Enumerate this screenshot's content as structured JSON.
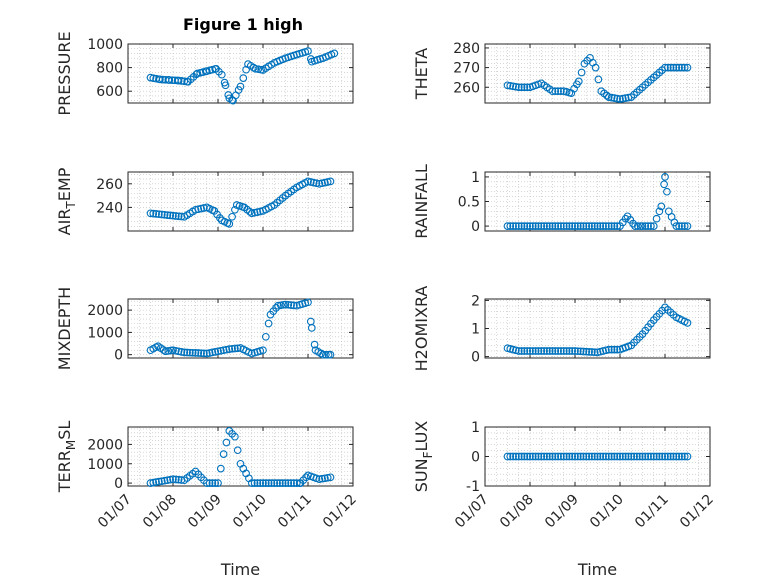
{
  "figure": {
    "title": "Figure 1 high"
  },
  "theme": {
    "marker_color": "#0072BD",
    "axis_color": "#262626",
    "grid_color": "#bdbdbd"
  },
  "chart_data": [
    {
      "type": "scatter",
      "ylabel_main": "PRESSURE",
      "ylabel_sub": "",
      "ylabel_tail": "",
      "ylim": [
        500,
        1000
      ],
      "yticks": [
        600,
        800,
        1000
      ],
      "ytick_labels": [
        "600",
        "800",
        "1000"
      ],
      "xlim": [
        "2020-01-07",
        "2020-01-12"
      ],
      "grid": true,
      "minor_grid": true,
      "x": [
        "2020-01-07 12:00",
        "2020-01-07 17:00",
        "2020-01-07 22:00",
        "2020-01-08 03:00",
        "2020-01-08 08:00",
        "2020-01-08 13:00",
        "2020-01-08 18:00",
        "2020-01-08 23:00",
        "2020-01-09 02:00",
        "2020-01-09 04:00",
        "2020-01-09 06:00",
        "2020-01-09 08:00",
        "2020-01-09 12:00",
        "2020-01-09 16:00",
        "2020-01-09 20:00",
        "2020-01-10 00:00",
        "2020-01-10 06:00",
        "2020-01-10 12:00",
        "2020-01-10 18:00",
        "2020-01-11 00:00",
        "2020-01-11 02:00",
        "2020-01-11 08:00",
        "2020-01-11 14:00"
      ],
      "values": [
        715,
        700,
        695,
        690,
        680,
        750,
        770,
        790,
        740,
        650,
        540,
        520,
        640,
        830,
        790,
        780,
        840,
        880,
        910,
        940,
        850,
        880,
        920
      ]
    },
    {
      "type": "scatter",
      "ylabel_main": "THETA",
      "ylabel_sub": "",
      "ylabel_tail": "",
      "ylim": [
        252,
        282
      ],
      "yticks": [
        260,
        270,
        280
      ],
      "ytick_labels": [
        "260",
        "270",
        "280"
      ],
      "xlim": [
        "2020-01-07",
        "2020-01-12"
      ],
      "grid": true,
      "minor_grid": true,
      "x": [
        "2020-01-07 12:00",
        "2020-01-07 18:00",
        "2020-01-08 00:00",
        "2020-01-08 06:00",
        "2020-01-08 12:00",
        "2020-01-08 18:00",
        "2020-01-08 22:00",
        "2020-01-09 02:00",
        "2020-01-09 05:00",
        "2020-01-09 08:00",
        "2020-01-09 11:00",
        "2020-01-09 14:00",
        "2020-01-09 18:00",
        "2020-01-10 00:00",
        "2020-01-10 06:00",
        "2020-01-10 12:00",
        "2020-01-10 18:00",
        "2020-01-11 00:00",
        "2020-01-11 06:00",
        "2020-01-11 12:00"
      ],
      "values": [
        261,
        260,
        260,
        262,
        258,
        258,
        257,
        263,
        272,
        275,
        270,
        258,
        255,
        254,
        255,
        260,
        265,
        270,
        270,
        270
      ]
    },
    {
      "type": "scatter",
      "ylabel_main": "AIR",
      "ylabel_sub": "T",
      "ylabel_tail": "EMP",
      "ylim": [
        220,
        270
      ],
      "yticks": [
        240,
        260
      ],
      "ytick_labels": [
        "240",
        "260"
      ],
      "xlim": [
        "2020-01-07",
        "2020-01-12"
      ],
      "grid": true,
      "minor_grid": true,
      "x": [
        "2020-01-07 12:00",
        "2020-01-07 18:00",
        "2020-01-08 00:00",
        "2020-01-08 06:00",
        "2020-01-08 12:00",
        "2020-01-08 18:00",
        "2020-01-08 22:00",
        "2020-01-09 02:00",
        "2020-01-09 06:00",
        "2020-01-09 10:00",
        "2020-01-09 14:00",
        "2020-01-09 18:00",
        "2020-01-10 00:00",
        "2020-01-10 06:00",
        "2020-01-10 12:00",
        "2020-01-10 18:00",
        "2020-01-11 00:00",
        "2020-01-11 06:00",
        "2020-01-11 12:00"
      ],
      "values": [
        235,
        234,
        233,
        232,
        238,
        240,
        237,
        229,
        226,
        242,
        240,
        235,
        237,
        242,
        250,
        257,
        262,
        260,
        262
      ]
    },
    {
      "type": "scatter",
      "ylabel_main": "RAINFALL",
      "ylabel_sub": "",
      "ylabel_tail": "",
      "ylim": [
        -0.1,
        1.1
      ],
      "yticks": [
        0,
        0.5,
        1
      ],
      "ytick_labels": [
        "0",
        "0.5",
        "1"
      ],
      "xlim": [
        "2020-01-07",
        "2020-01-12"
      ],
      "grid": true,
      "minor_grid": true,
      "x": [
        "2020-01-07 12:00",
        "2020-01-07 18:00",
        "2020-01-08 00:00",
        "2020-01-08 06:00",
        "2020-01-08 12:00",
        "2020-01-08 18:00",
        "2020-01-09 00:00",
        "2020-01-09 06:00",
        "2020-01-09 12:00",
        "2020-01-09 18:00",
        "2020-01-10 00:00",
        "2020-01-10 04:00",
        "2020-01-10 08:00",
        "2020-01-10 12:00",
        "2020-01-10 18:00",
        "2020-01-10 22:00",
        "2020-01-11 00:00",
        "2020-01-11 01:00",
        "2020-01-11 02:00",
        "2020-01-11 06:00",
        "2020-01-11 12:00"
      ],
      "values": [
        0,
        0,
        0,
        0,
        0,
        0,
        0,
        0,
        0,
        0,
        0,
        0.2,
        0,
        0,
        0,
        0.4,
        1.0,
        0.7,
        0.3,
        0,
        0
      ]
    },
    {
      "type": "scatter",
      "ylabel_main": "MIXDEPTH",
      "ylabel_sub": "",
      "ylabel_tail": "",
      "ylim": [
        -150,
        2500
      ],
      "yticks": [
        0,
        1000,
        2000
      ],
      "ytick_labels": [
        "0",
        "1000",
        "2000"
      ],
      "xlim": [
        "2020-01-07",
        "2020-01-12"
      ],
      "grid": true,
      "minor_grid": true,
      "x": [
        "2020-01-07 12:00",
        "2020-01-07 16:00",
        "2020-01-07 20:00",
        "2020-01-08 00:00",
        "2020-01-08 06:00",
        "2020-01-08 12:00",
        "2020-01-08 18:00",
        "2020-01-09 00:00",
        "2020-01-09 06:00",
        "2020-01-09 12:00",
        "2020-01-09 18:00",
        "2020-01-10 00:00",
        "2020-01-10 04:00",
        "2020-01-10 08:00",
        "2020-01-10 12:00",
        "2020-01-10 18:00",
        "2020-01-11 00:00",
        "2020-01-11 02:00",
        "2020-01-11 04:00",
        "2020-01-11 08:00",
        "2020-01-11 12:00"
      ],
      "values": [
        200,
        380,
        150,
        200,
        100,
        80,
        50,
        150,
        250,
        300,
        50,
        200,
        1800,
        2200,
        2250,
        2200,
        2350,
        1200,
        200,
        0,
        0
      ]
    },
    {
      "type": "scatter",
      "ylabel_main": "H2OMIXRA",
      "ylabel_sub": "",
      "ylabel_tail": "",
      "ylim": [
        -0.05,
        2.05
      ],
      "yticks": [
        0,
        1,
        2
      ],
      "ytick_labels": [
        "0",
        "1",
        "2"
      ],
      "xlim": [
        "2020-01-07",
        "2020-01-12"
      ],
      "grid": true,
      "minor_grid": true,
      "x": [
        "2020-01-07 12:00",
        "2020-01-07 18:00",
        "2020-01-08 00:00",
        "2020-01-08 12:00",
        "2020-01-09 00:00",
        "2020-01-09 12:00",
        "2020-01-09 18:00",
        "2020-01-10 00:00",
        "2020-01-10 06:00",
        "2020-01-10 12:00",
        "2020-01-10 18:00",
        "2020-01-11 00:00",
        "2020-01-11 06:00",
        "2020-01-11 12:00"
      ],
      "values": [
        0.3,
        0.2,
        0.2,
        0.2,
        0.2,
        0.15,
        0.25,
        0.25,
        0.4,
        0.8,
        1.3,
        1.75,
        1.4,
        1.2
      ]
    },
    {
      "type": "scatter",
      "ylabel_main": "TERR",
      "ylabel_sub": "M",
      "ylabel_tail": "SL",
      "ylim": [
        -150,
        2900
      ],
      "yticks": [
        0,
        1000,
        2000
      ],
      "ytick_labels": [
        "0",
        "1000",
        "2000"
      ],
      "xlim": [
        "2020-01-07",
        "2020-01-12"
      ],
      "grid": true,
      "minor_grid": true,
      "x": [
        "2020-01-07 12:00",
        "2020-01-07 18:00",
        "2020-01-08 00:00",
        "2020-01-08 06:00",
        "2020-01-08 12:00",
        "2020-01-08 18:00",
        "2020-01-09 00:00",
        "2020-01-09 03:00",
        "2020-01-09 06:00",
        "2020-01-09 09:00",
        "2020-01-09 12:00",
        "2020-01-09 18:00",
        "2020-01-10 00:00",
        "2020-01-10 12:00",
        "2020-01-10 20:00",
        "2020-01-11 00:00",
        "2020-01-11 06:00",
        "2020-01-11 12:00"
      ],
      "values": [
        0,
        100,
        200,
        150,
        600,
        0,
        0,
        1500,
        2700,
        2400,
        1000,
        0,
        0,
        0,
        0,
        400,
        200,
        300
      ]
    },
    {
      "type": "scatter",
      "ylabel_main": "SUN",
      "ylabel_sub": "F",
      "ylabel_tail": "LUX",
      "ylim": [
        -1,
        1
      ],
      "yticks": [
        -1,
        0,
        1
      ],
      "ytick_labels": [
        "-1",
        "0",
        "1"
      ],
      "xlim": [
        "2020-01-07",
        "2020-01-12"
      ],
      "grid": true,
      "minor_grid": true,
      "x": [
        "2020-01-07 12:00",
        "2020-01-08 00:00",
        "2020-01-08 12:00",
        "2020-01-09 00:00",
        "2020-01-09 12:00",
        "2020-01-10 00:00",
        "2020-01-10 12:00",
        "2020-01-11 00:00",
        "2020-01-11 12:00"
      ],
      "values": [
        0,
        0,
        0,
        0,
        0,
        0,
        0,
        0,
        0
      ]
    }
  ],
  "xaxis": {
    "tick_dates": [
      "2020-01-07",
      "2020-01-08",
      "2020-01-09",
      "2020-01-10",
      "2020-01-11",
      "2020-01-12"
    ],
    "tick_labels": [
      "01/07",
      "01/08",
      "01/09",
      "01/10",
      "01/11",
      "01/12"
    ],
    "label": "Time"
  }
}
